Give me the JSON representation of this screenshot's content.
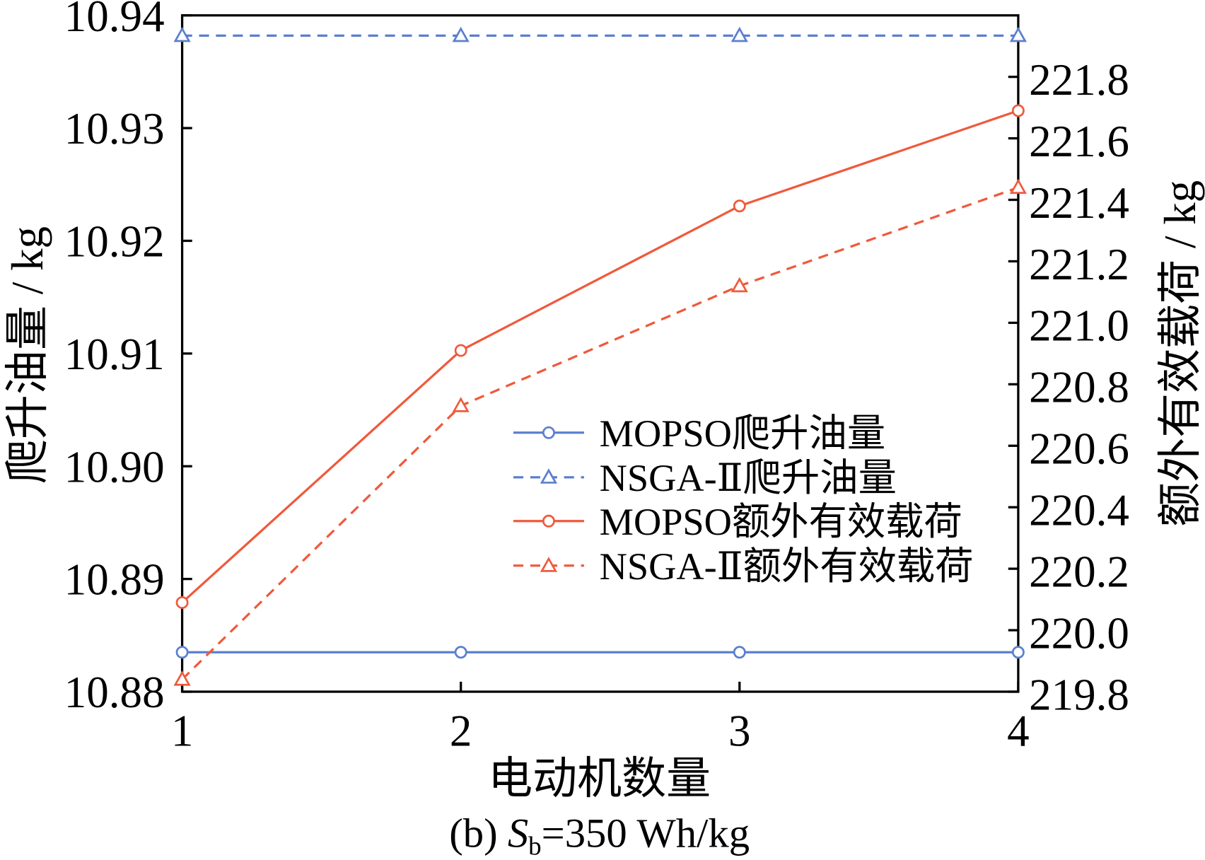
{
  "chart_data": {
    "type": "line",
    "xlabel": "电动机数量",
    "ylabel_left": "爬升油量 / kg",
    "ylabel_right": "额外有效载荷 / kg",
    "caption": {
      "label": "(b)",
      "symbol": "S",
      "subscript": "b",
      "value": "=350 Wh/kg"
    },
    "x": [
      1,
      2,
      3,
      4
    ],
    "xlim": [
      1,
      4
    ],
    "x_ticks": [
      "1",
      "2",
      "3",
      "4"
    ],
    "ylim_left": [
      10.88,
      10.94
    ],
    "y_ticks_left": [
      "10.88",
      "10.89",
      "10.90",
      "10.91",
      "10.92",
      "10.93",
      "10.94"
    ],
    "ylim_right": [
      219.8,
      222.0
    ],
    "y_ticks_right": [
      "219.8",
      "220.0",
      "220.2",
      "220.4",
      "220.6",
      "220.8",
      "221.0",
      "221.2",
      "221.4",
      "221.6",
      "221.8"
    ],
    "grid": false,
    "legend_position": "center-right",
    "series": [
      {
        "name": "MOPSO爬升油量",
        "secondary_y": false,
        "dashed": false,
        "marker_icon": "circle-icon",
        "color": "#5b7fcf",
        "values": [
          10.8835,
          10.8835,
          10.8835,
          10.8835
        ]
      },
      {
        "name": "NSGA-Ⅱ爬升油量",
        "secondary_y": false,
        "dashed": true,
        "marker_icon": "triangle-icon",
        "color": "#5b7fcf",
        "values": [
          10.9382,
          10.9382,
          10.9382,
          10.9382
        ]
      },
      {
        "name": "MOPSO额外有效载荷",
        "secondary_y": true,
        "dashed": false,
        "marker_icon": "circle-icon",
        "color": "#ef5a3c",
        "values": [
          220.09,
          220.91,
          221.38,
          221.69
        ]
      },
      {
        "name": "NSGA-Ⅱ额外有效载荷",
        "secondary_y": true,
        "dashed": true,
        "marker_icon": "triangle-icon",
        "color": "#ef5a3c",
        "values": [
          219.84,
          220.73,
          221.12,
          221.44
        ]
      }
    ]
  }
}
